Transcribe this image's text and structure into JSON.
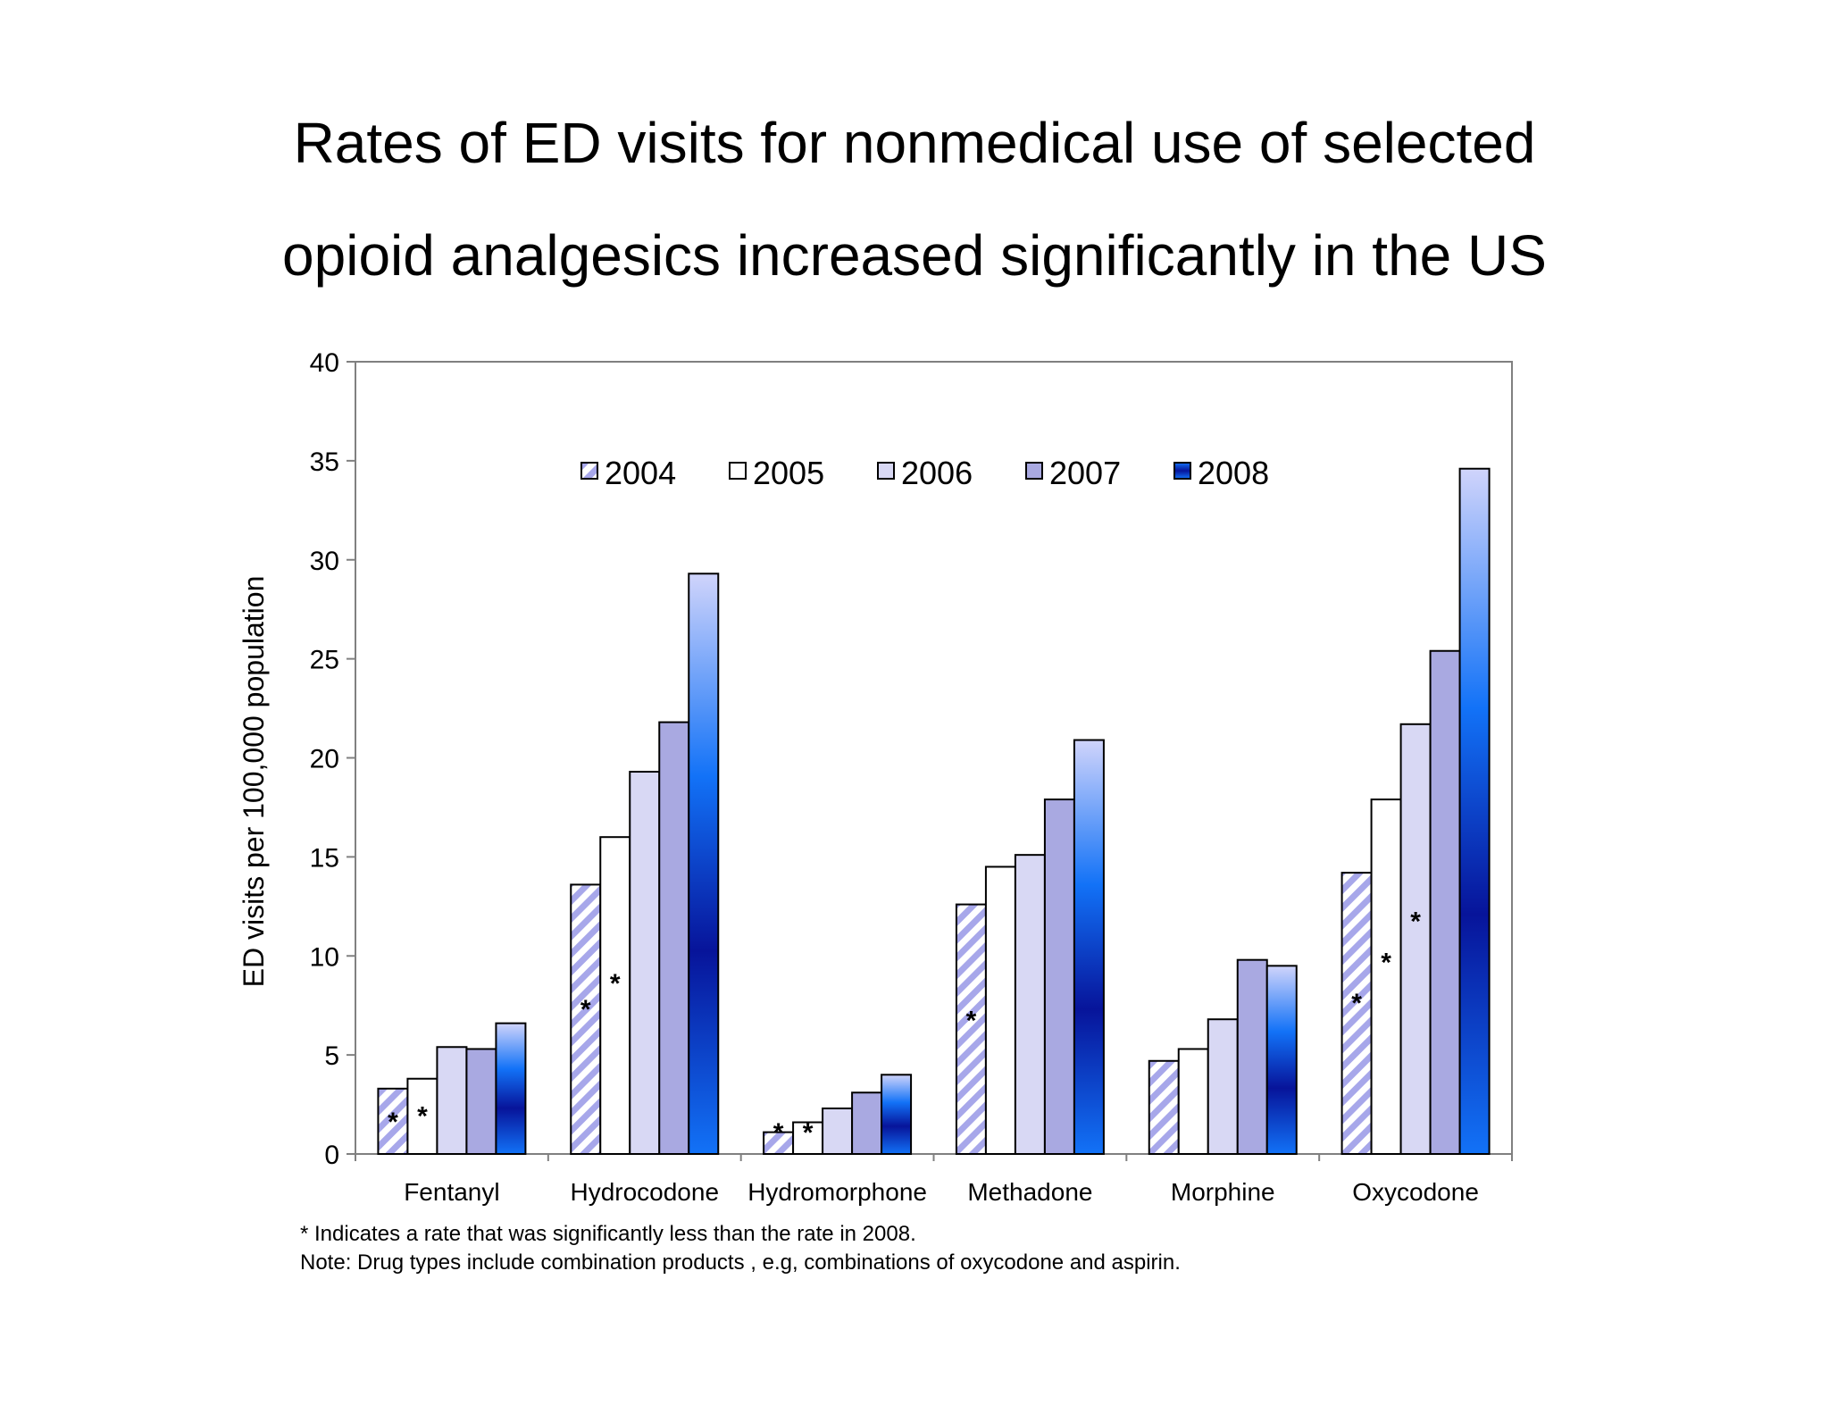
{
  "title_lines": [
    "Rates of ED visits for nonmedical use of selected",
    "opioid analgesics  increased significantly in the US"
  ],
  "footnotes": [
    "* Indicates a rate that was significantly less than the rate in 2008.",
    "Note: Drug types include combination products , e.g, combinations  of oxycodone and aspirin."
  ],
  "chart_data": {
    "type": "bar",
    "categories": [
      "Fentanyl",
      "Hydrocodone",
      "Hydromorphone",
      "Methadone",
      "Morphine",
      "Oxycodone"
    ],
    "ylabel": "ED visits per 100,000 population",
    "xlabel": "",
    "ylim": [
      0,
      40
    ],
    "yticks": [
      0,
      5,
      10,
      15,
      20,
      25,
      30,
      35,
      40
    ],
    "grid": false,
    "legend_position": "top-center",
    "significance_marker": "*",
    "series": [
      {
        "name": "2004",
        "style": "diagonal-stripes",
        "colors": [
          "#ffffff",
          "#a7a7ea"
        ],
        "values": [
          3.3,
          13.6,
          1.1,
          12.6,
          4.7,
          14.2
        ],
        "significant": [
          true,
          true,
          true,
          true,
          false,
          true
        ]
      },
      {
        "name": "2005",
        "style": "solid",
        "colors": [
          "#ffffff"
        ],
        "values": [
          3.8,
          16.0,
          1.6,
          14.5,
          5.3,
          17.9
        ],
        "significant": [
          true,
          true,
          true,
          false,
          false,
          true
        ]
      },
      {
        "name": "2006",
        "style": "solid",
        "colors": [
          "#d8d8f4"
        ],
        "values": [
          5.4,
          19.3,
          2.3,
          15.1,
          6.8,
          21.7
        ],
        "significant": [
          false,
          false,
          false,
          false,
          false,
          true
        ]
      },
      {
        "name": "2007",
        "style": "solid",
        "colors": [
          "#a9a9e1"
        ],
        "values": [
          5.3,
          21.8,
          3.1,
          17.9,
          9.8,
          25.4
        ],
        "significant": [
          false,
          false,
          false,
          false,
          false,
          false
        ]
      },
      {
        "name": "2008",
        "style": "blue-gradient",
        "colors": [
          "#d0d4fb",
          "#1272f7",
          "#07149a"
        ],
        "values": [
          6.6,
          29.3,
          4.0,
          20.9,
          9.5,
          34.6
        ],
        "significant": [
          false,
          false,
          false,
          false,
          false,
          false
        ]
      }
    ]
  }
}
